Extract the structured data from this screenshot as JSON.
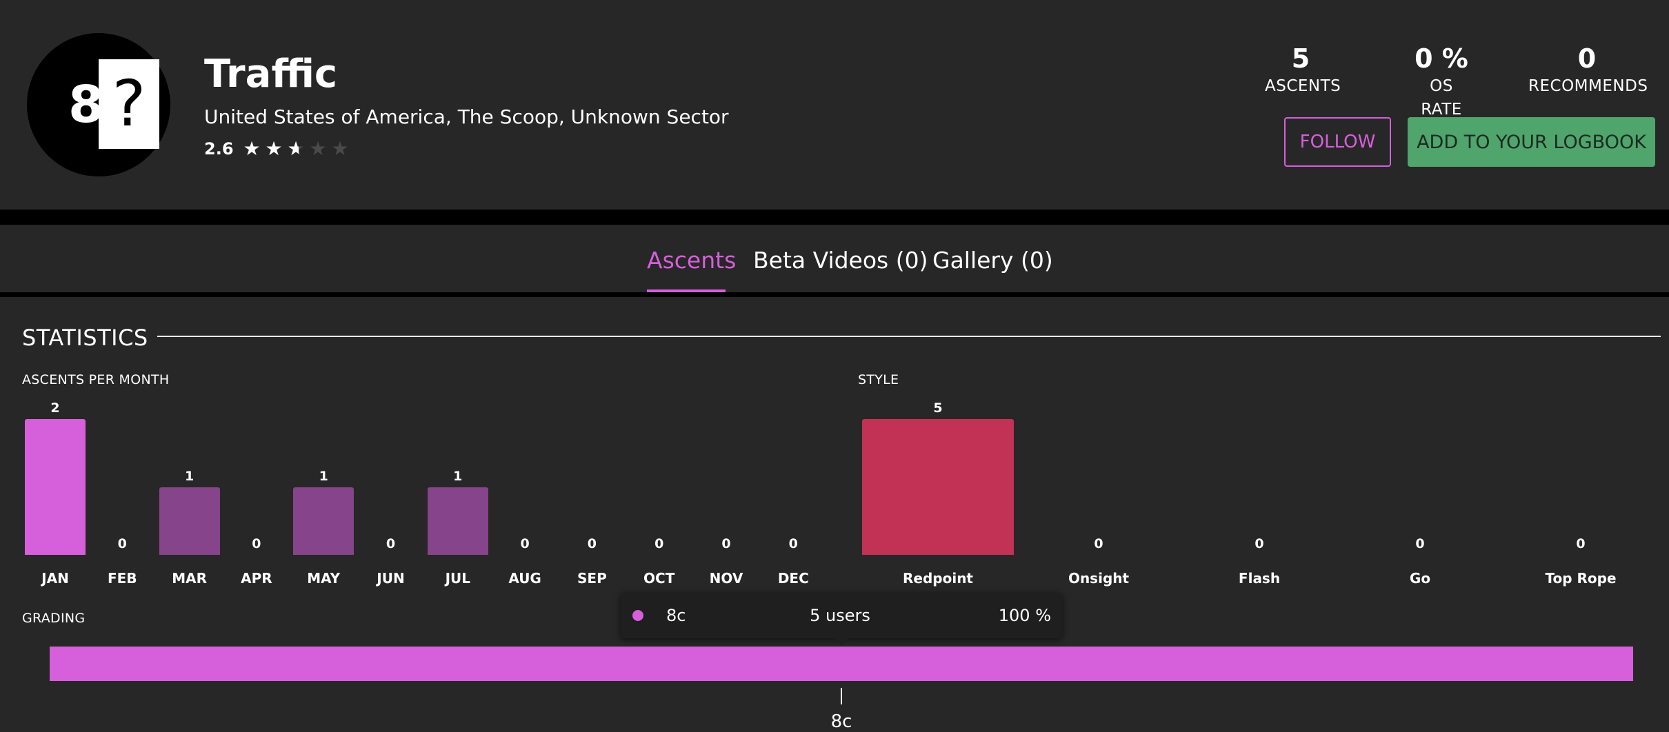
{
  "route": {
    "grade_number": "8",
    "grade_unknown": "?",
    "title": "Traffic",
    "location": "United States of America, The Scoop, Unknown Sector",
    "rating": 2.6,
    "rating_label": "2.6",
    "star_max": 5
  },
  "stats": {
    "ascents_value": "5",
    "ascents_label": "ASCENTS",
    "os_rate_value": "0 %",
    "os_rate_label": "OS RATE",
    "recommends_value": "0",
    "recommends_label": "RECOMMENDS"
  },
  "actions": {
    "follow_label": "FOLLOW",
    "logbook_label": "ADD TO YOUR LOGBOOK"
  },
  "tabs": [
    {
      "label": "Ascents",
      "active": true
    },
    {
      "label": "Beta Videos (0)",
      "active": false
    },
    {
      "label": "Gallery (0)",
      "active": false
    }
  ],
  "statistics": {
    "title": "STATISTICS",
    "ascents_per_month_label": "ASCENTS PER MONTH",
    "style_label": "STYLE",
    "grading_label": "GRADING"
  },
  "colors": {
    "accent": "#d65fdc",
    "bar_highlight": "#d65fdc",
    "bar_muted": "#86448a",
    "style_bar": "#c13254",
    "logbook_button": "#4fa56c"
  },
  "chart_data": [
    {
      "type": "bar",
      "title": "ASCENTS PER MONTH",
      "categories": [
        "JAN",
        "FEB",
        "MAR",
        "APR",
        "MAY",
        "JUN",
        "JUL",
        "AUG",
        "SEP",
        "OCT",
        "NOV",
        "DEC"
      ],
      "values": [
        2,
        0,
        1,
        0,
        1,
        0,
        1,
        0,
        0,
        0,
        0,
        0
      ],
      "ylim": [
        0,
        2
      ]
    },
    {
      "type": "bar",
      "title": "STYLE",
      "categories": [
        "Redpoint",
        "Onsight",
        "Flash",
        "Go",
        "Top Rope"
      ],
      "values": [
        5,
        0,
        0,
        0,
        0
      ],
      "ylim": [
        0,
        5
      ]
    },
    {
      "type": "bar",
      "title": "GRADING",
      "categories": [
        "8c"
      ],
      "values": [
        5
      ],
      "tooltip": {
        "grade": "8c",
        "users": "5 users",
        "percent": "100 %"
      }
    }
  ]
}
